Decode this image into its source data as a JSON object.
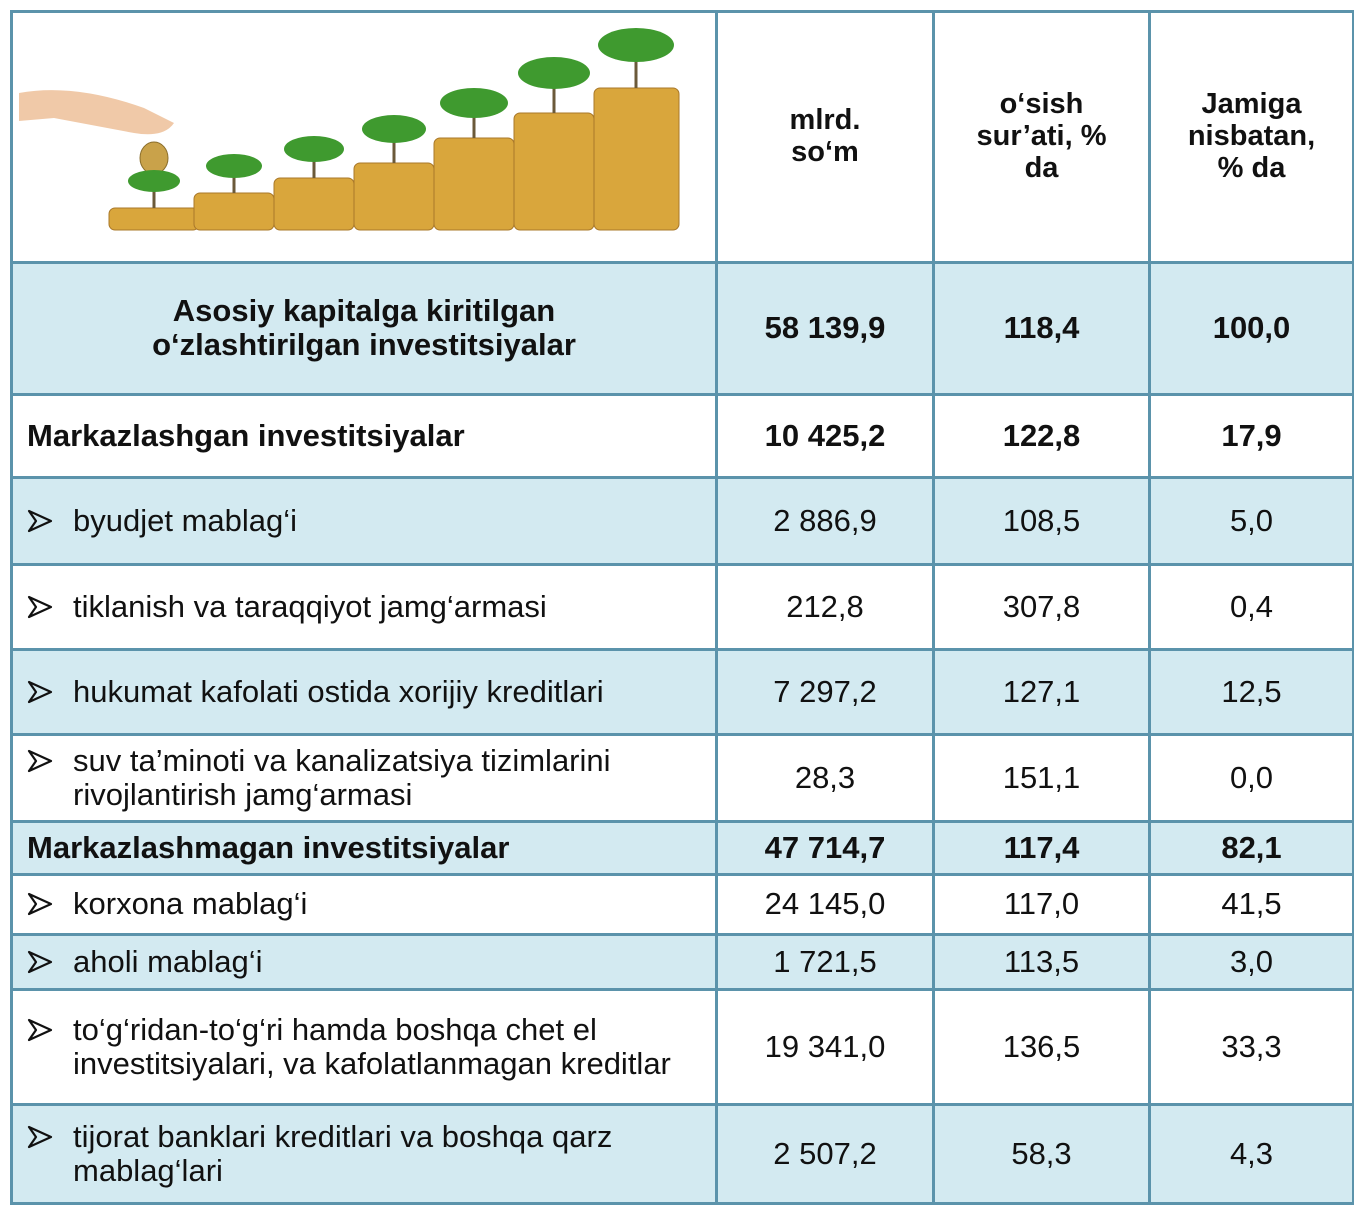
{
  "table": {
    "header": [
      "mlrd. so‘m",
      "o‘sish sur’ati, % da",
      "Jamiga nisbatan, % da"
    ],
    "rows": [
      [
        "Asosiy kapitalga kiritilgan o‘zlashtirilgan investitsiyalar",
        "58 139,9",
        "118,4",
        "100,0"
      ],
      [
        "Markazlashgan investitsiyalar",
        "10 425,2",
        "122,8",
        "17,9"
      ],
      [
        "byudjet mablag‘i",
        "2 886,9",
        "108,5",
        "5,0"
      ],
      [
        "tiklanish va taraqqiyot jamg‘armasi",
        "212,8",
        "307,8",
        "0,4"
      ],
      [
        "hukumat kafolati ostida xorijiy kreditlari",
        "7 297,2",
        "127,1",
        "12,5"
      ],
      [
        "suv ta’minoti va kanalizatsiya tizimlarini rivojlantirish jamg‘armasi",
        "28,3",
        "151,1",
        "0,0"
      ],
      [
        "Markazlashmagan investitsiyalar",
        "47 714,7",
        "117,4",
        "82,1"
      ],
      [
        "korxona mablag‘i",
        "24 145,0",
        "117,0",
        "41,5"
      ],
      [
        "aholi mablag‘i",
        "1 721,5",
        "113,5",
        "3,0"
      ],
      [
        "to‘g‘ridan-to‘g‘ri hamda boshqa chet el investitsiyalari, va kafolatlanmagan kreditlar",
        "19 341,0",
        "136,5",
        "33,3"
      ],
      [
        "tijorat banklari kreditlari va boshqa qarz mablag‘lari",
        "2 507,2",
        "58,3",
        "4,3"
      ]
    ]
  }
}
